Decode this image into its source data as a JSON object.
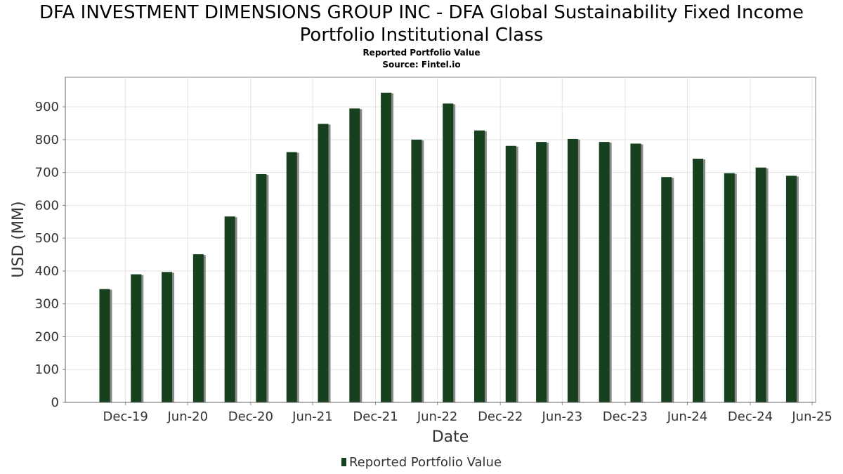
{
  "chart_data": {
    "type": "bar",
    "title_line1": "DFA INVESTMENT DIMENSIONS GROUP INC - DFA Global Sustainability Fixed Income",
    "title_line2": "Portfolio Institutional Class",
    "subtitle": "Reported Portfolio Value",
    "source": "Source: Fintel.io",
    "xlabel": "Date",
    "ylabel": "USD (MM)",
    "ylim": [
      0,
      990
    ],
    "yticks": [
      0,
      100,
      200,
      300,
      400,
      500,
      600,
      700,
      800,
      900
    ],
    "xlim": [
      "2019-07-08",
      "2025-07-10"
    ],
    "xticks": [
      {
        "label": "Dec-19",
        "date": "2019-12-31"
      },
      {
        "label": "Jun-20",
        "date": "2020-06-30"
      },
      {
        "label": "Dec-20",
        "date": "2020-12-31"
      },
      {
        "label": "Jun-21",
        "date": "2021-06-30"
      },
      {
        "label": "Dec-21",
        "date": "2021-12-31"
      },
      {
        "label": "Jun-22",
        "date": "2022-06-30"
      },
      {
        "label": "Dec-22",
        "date": "2022-12-31"
      },
      {
        "label": "Jun-23",
        "date": "2023-06-30"
      },
      {
        "label": "Dec-23",
        "date": "2023-12-31"
      },
      {
        "label": "Jun-24",
        "date": "2024-06-30"
      },
      {
        "label": "Dec-24",
        "date": "2024-12-31"
      },
      {
        "label": "Jun-25",
        "date": "2025-06-30"
      }
    ],
    "grid": true,
    "legend_position": "bottom",
    "series": [
      {
        "name": "Reported Portfolio Value",
        "color": "#17401f",
        "shadow_color": "#8a8a8a",
        "dates": [
          "2019-10-31",
          "2020-01-31",
          "2020-04-30",
          "2020-07-31",
          "2020-10-31",
          "2021-01-31",
          "2021-04-30",
          "2021-07-31",
          "2021-10-31",
          "2022-01-31",
          "2022-04-30",
          "2022-07-31",
          "2022-10-31",
          "2023-01-31",
          "2023-04-30",
          "2023-07-31",
          "2023-10-31",
          "2024-01-31",
          "2024-04-30",
          "2024-07-31",
          "2024-10-31",
          "2025-01-31",
          "2025-04-30"
        ],
        "values": [
          345,
          390,
          397,
          451,
          566,
          695,
          762,
          848,
          895,
          943,
          800,
          910,
          828,
          781,
          793,
          802,
          793,
          788,
          686,
          742,
          698,
          715,
          690
        ]
      }
    ]
  }
}
